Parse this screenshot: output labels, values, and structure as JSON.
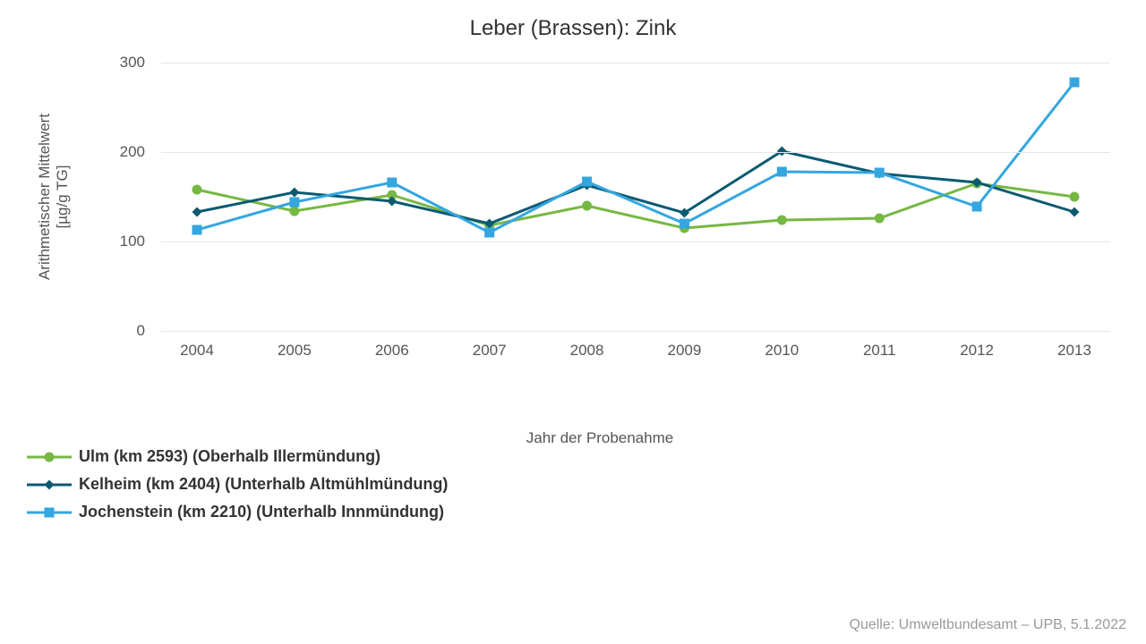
{
  "title": "Leber (Brassen): Zink",
  "ylabel": "Arithmetischer Mittelwert\n[µg/g TG]",
  "xlabel": "Jahr der Probenahme",
  "source": "Quelle: Umweltbundesamt – UPB, 5.1.2022",
  "chart": {
    "type": "line",
    "background_color": "#ffffff",
    "grid_color": "#e6e6e6",
    "ylim": [
      0,
      300
    ],
    "yticks": [
      0,
      100,
      200,
      300
    ],
    "xcategories": [
      "2004",
      "2005",
      "2006",
      "2007",
      "2008",
      "2009",
      "2010",
      "2011",
      "2012",
      "2013"
    ],
    "line_width": 3,
    "marker_size": 11,
    "title_fontsize": 24,
    "label_fontsize": 17,
    "tick_fontsize": 17,
    "legend_fontsize": 18,
    "legend_fontweight": "bold",
    "series": [
      {
        "name": "Ulm (km 2593) (Oberhalb Illermündung)",
        "color": "#76b843",
        "marker": "circle",
        "values": [
          158,
          134,
          152,
          118,
          140,
          115,
          124,
          126,
          165,
          150
        ]
      },
      {
        "name": "Kelheim (km 2404) (Unterhalb Altmühlmündung)",
        "color": "#0b5a71",
        "marker": "diamond",
        "values": [
          133,
          155,
          145,
          120,
          163,
          132,
          201,
          176,
          166,
          133
        ]
      },
      {
        "name": "Jochenstein (km 2210) (Unterhalb Innmündung)",
        "color": "#34a6e0",
        "marker": "square",
        "values": [
          113,
          144,
          166,
          110,
          167,
          120,
          178,
          177,
          139,
          278
        ]
      }
    ]
  }
}
